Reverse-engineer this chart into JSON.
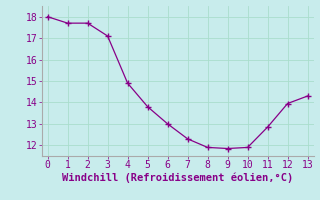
{
  "x": [
    0,
    1,
    2,
    3,
    4,
    5,
    6,
    7,
    8,
    9,
    10,
    11,
    12,
    13
  ],
  "y": [
    18.0,
    17.7,
    17.7,
    17.1,
    14.9,
    13.8,
    13.0,
    12.3,
    11.9,
    11.85,
    11.9,
    12.85,
    13.95,
    14.3
  ],
  "line_color": "#880088",
  "marker": "+",
  "markersize": 4,
  "markeredgewidth": 1.0,
  "linewidth": 0.9,
  "background_color": "#c8ecec",
  "grid_color": "#aaddcc",
  "xlabel": "Windchill (Refroidissement éolien,°C)",
  "xlabel_color": "#880088",
  "xlabel_fontsize": 7.5,
  "tick_color": "#880088",
  "tick_fontsize": 7,
  "ylim": [
    11.5,
    18.5
  ],
  "xlim": [
    -0.3,
    13.3
  ],
  "yticks": [
    12,
    13,
    14,
    15,
    16,
    17,
    18
  ],
  "xticks": [
    0,
    1,
    2,
    3,
    4,
    5,
    6,
    7,
    8,
    9,
    10,
    11,
    12,
    13
  ]
}
